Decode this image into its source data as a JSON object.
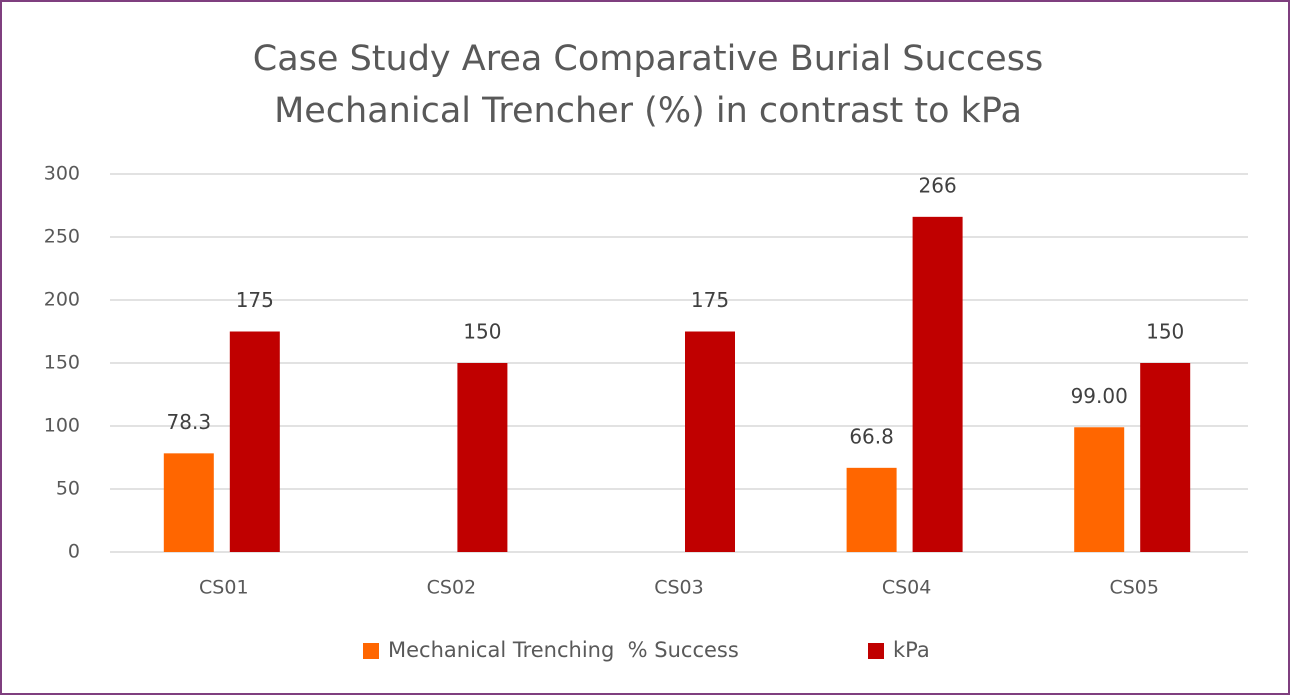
{
  "chart_data": {
    "type": "bar",
    "title": [
      "Case Study Area Comparative Burial Success",
      "Mechanical Trencher (%) in contrast to kPa"
    ],
    "categories": [
      "CS01",
      "CS02",
      "CS03",
      "CS04",
      "CS05"
    ],
    "series": [
      {
        "name": "Mechanical Trenching  % Success",
        "color": "#ff6600",
        "values": [
          78.3,
          null,
          null,
          66.8,
          99
        ],
        "value_labels": [
          "78.3",
          null,
          null,
          "66.8",
          "99.00"
        ]
      },
      {
        "name": "kPa",
        "color": "#c00000",
        "values": [
          175,
          150,
          175,
          266,
          150
        ]
      }
    ],
    "ylim": [
      0,
      300
    ],
    "yticks": [
      0,
      50,
      100,
      150,
      200,
      250,
      300
    ],
    "grid": true,
    "legend": "bottom"
  }
}
